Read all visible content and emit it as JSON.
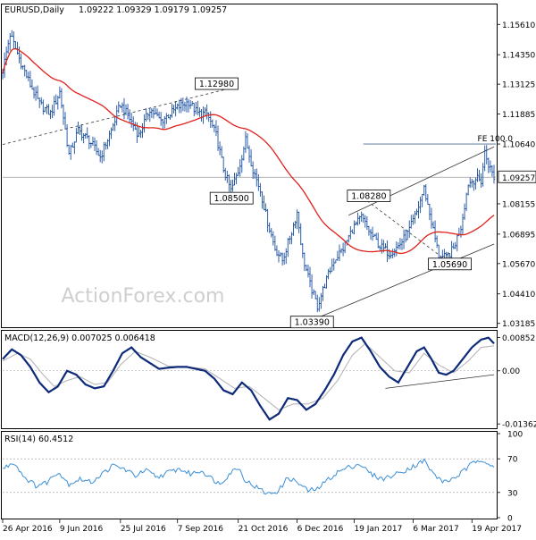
{
  "header": {
    "symbol": "EURUSD,Daily",
    "ohlc": "1.09222 1.09329 1.09179 1.09257"
  },
  "watermark": "ActionForex.com",
  "colors": {
    "bars": "#1b4fa0",
    "ma": "#e0201b",
    "macd": "#0d2a7a",
    "signal": "#b7b7b7",
    "rsi": "#3a8fd6",
    "price_tag_bg": "#ffffff"
  },
  "chart_data": [
    {
      "type": "line",
      "panel": "price",
      "title": "EURUSD,Daily",
      "ylim": [
        1.031,
        1.164
      ],
      "y_ticks": [
        "1.15610",
        "1.14350",
        "1.13125",
        "1.11885",
        "1.10640",
        "1.09257",
        "1.08155",
        "1.06895",
        "1.05670",
        "1.04410",
        "1.03185"
      ],
      "y_tick_values": [
        1.1561,
        1.1435,
        1.13125,
        1.11885,
        1.1064,
        1.09257,
        1.08155,
        1.06895,
        1.0567,
        1.0441,
        1.03185
      ],
      "last_price_label": "1.09257",
      "last_price": 1.09257,
      "x_ticks": [
        "26 Apr 2016",
        "9 Jun 2016",
        "25 Jul 2016",
        "7 Sep 2016",
        "21 Oct 2016",
        "6 Dec 2016",
        "19 Jan 2017",
        "6 Mar 2017",
        "19 Apr 2017"
      ],
      "x_tick_index": [
        0,
        31,
        64,
        95,
        128,
        160,
        191,
        223,
        255
      ],
      "n_bars": 268,
      "price_path": [
        [
          0,
          1.137
        ],
        [
          4,
          1.152
        ],
        [
          9,
          1.142
        ],
        [
          15,
          1.131
        ],
        [
          20,
          1.123
        ],
        [
          26,
          1.119
        ],
        [
          31,
          1.128
        ],
        [
          36,
          1.102
        ],
        [
          41,
          1.112
        ],
        [
          47,
          1.108
        ],
        [
          53,
          1.101
        ],
        [
          59,
          1.112
        ],
        [
          64,
          1.123
        ],
        [
          69,
          1.117
        ],
        [
          74,
          1.11
        ],
        [
          80,
          1.121
        ],
        [
          86,
          1.116
        ],
        [
          91,
          1.119
        ],
        [
          96,
          1.122
        ],
        [
          101,
          1.124
        ],
        [
          106,
          1.119
        ],
        [
          111,
          1.119
        ],
        [
          116,
          1.11
        ],
        [
          120,
          1.096
        ],
        [
          124,
          1.087
        ],
        [
          128,
          1.095
        ],
        [
          132,
          1.108
        ],
        [
          136,
          1.096
        ],
        [
          140,
          1.087
        ],
        [
          144,
          1.074
        ],
        [
          148,
          1.063
        ],
        [
          152,
          1.058
        ],
        [
          157,
          1.07
        ],
        [
          160,
          1.078
        ],
        [
          163,
          1.06
        ],
        [
          167,
          1.048
        ],
        [
          171,
          1.039
        ],
        [
          175,
          1.048
        ],
        [
          180,
          1.058
        ],
        [
          185,
          1.063
        ],
        [
          190,
          1.071
        ],
        [
          195,
          1.076
        ],
        [
          200,
          1.069
        ],
        [
          205,
          1.064
        ],
        [
          210,
          1.061
        ],
        [
          215,
          1.064
        ],
        [
          220,
          1.069
        ],
        [
          225,
          1.078
        ],
        [
          229,
          1.088
        ],
        [
          233,
          1.074
        ],
        [
          237,
          1.06
        ],
        [
          241,
          1.059
        ],
        [
          245,
          1.063
        ],
        [
          249,
          1.072
        ],
        [
          253,
          1.09
        ],
        [
          257,
          1.092
        ],
        [
          260,
          1.091
        ],
        [
          262,
          1.103
        ],
        [
          264,
          1.098
        ],
        [
          267,
          1.0926
        ]
      ],
      "labels": [
        {
          "text": "1.12980",
          "bar": 125,
          "price": 1.1298
        },
        {
          "text": "1.08500",
          "bar": 137,
          "price": 1.085
        },
        {
          "text": "1.03390",
          "bar": 171,
          "price": 1.0339
        },
        {
          "text": "1.08280",
          "bar": 198,
          "price": 1.0828
        },
        {
          "text": "1.05690",
          "bar": 243,
          "price": 1.0569
        },
        {
          "text": "FE 100.0",
          "bar": 259,
          "price": 1.1064
        }
      ],
      "fe_level": 1.1064
    },
    {
      "type": "line",
      "panel": "macd",
      "title": "MACD(12,26,9) 0.007025 0.006418",
      "ylim": [
        -0.0145,
        0.0098
      ],
      "y_ticks": [
        "0.008521",
        "0.00",
        "-0.013624"
      ],
      "y_tick_values": [
        0.008521,
        0.0,
        -0.013624
      ],
      "macd_path": [
        [
          0,
          0.003
        ],
        [
          5,
          0.0055
        ],
        [
          10,
          0.004
        ],
        [
          15,
          0.001
        ],
        [
          20,
          -0.003
        ],
        [
          25,
          -0.0055
        ],
        [
          30,
          -0.004
        ],
        [
          35,
          0.0
        ],
        [
          40,
          -0.001
        ],
        [
          45,
          -0.0035
        ],
        [
          50,
          -0.0045
        ],
        [
          55,
          -0.004
        ],
        [
          60,
          0.0
        ],
        [
          65,
          0.0045
        ],
        [
          70,
          0.006
        ],
        [
          75,
          0.0035
        ],
        [
          80,
          0.002
        ],
        [
          85,
          0.0005
        ],
        [
          90,
          0.0008
        ],
        [
          95,
          0.001
        ],
        [
          100,
          0.001
        ],
        [
          105,
          0.0005
        ],
        [
          110,
          0.0
        ],
        [
          115,
          -0.002
        ],
        [
          120,
          -0.005
        ],
        [
          125,
          -0.006
        ],
        [
          130,
          -0.003
        ],
        [
          135,
          -0.005
        ],
        [
          140,
          -0.009
        ],
        [
          145,
          -0.0125
        ],
        [
          150,
          -0.011
        ],
        [
          155,
          -0.007
        ],
        [
          160,
          -0.0075
        ],
        [
          165,
          -0.01
        ],
        [
          170,
          -0.0085
        ],
        [
          175,
          -0.005
        ],
        [
          180,
          -0.001
        ],
        [
          185,
          0.004
        ],
        [
          190,
          0.0075
        ],
        [
          195,
          0.0085
        ],
        [
          200,
          0.005
        ],
        [
          205,
          0.001
        ],
        [
          210,
          -0.0015
        ],
        [
          215,
          -0.003
        ],
        [
          220,
          0.001
        ],
        [
          225,
          0.005
        ],
        [
          229,
          0.006
        ],
        [
          233,
          0.003
        ],
        [
          237,
          -0.0005
        ],
        [
          241,
          -0.001
        ],
        [
          245,
          0.0
        ],
        [
          250,
          0.003
        ],
        [
          255,
          0.006
        ],
        [
          260,
          0.008
        ],
        [
          264,
          0.0085
        ],
        [
          267,
          0.007
        ]
      ],
      "signal_path": [
        [
          0,
          0.0025
        ],
        [
          8,
          0.0045
        ],
        [
          15,
          0.003
        ],
        [
          22,
          -0.001
        ],
        [
          28,
          -0.004
        ],
        [
          35,
          -0.0025
        ],
        [
          42,
          -0.0015
        ],
        [
          50,
          -0.0035
        ],
        [
          57,
          -0.003
        ],
        [
          64,
          0.0015
        ],
        [
          72,
          0.005
        ],
        [
          80,
          0.0035
        ],
        [
          90,
          0.0012
        ],
        [
          100,
          0.001
        ],
        [
          110,
          0.0005
        ],
        [
          118,
          -0.002
        ],
        [
          126,
          -0.0045
        ],
        [
          134,
          -0.004
        ],
        [
          142,
          -0.007
        ],
        [
          150,
          -0.01
        ],
        [
          158,
          -0.0085
        ],
        [
          166,
          -0.0085
        ],
        [
          174,
          -0.007
        ],
        [
          182,
          -0.0025
        ],
        [
          190,
          0.004
        ],
        [
          197,
          0.007
        ],
        [
          205,
          0.0035
        ],
        [
          213,
          0.0
        ],
        [
          221,
          -0.0005
        ],
        [
          229,
          0.0045
        ],
        [
          237,
          0.0015
        ],
        [
          245,
          -0.0005
        ],
        [
          253,
          0.0025
        ],
        [
          260,
          0.006
        ],
        [
          267,
          0.0064
        ]
      ],
      "trendline": [
        [
          208,
          -0.0045
        ],
        [
          267,
          -0.001
        ]
      ]
    },
    {
      "type": "line",
      "panel": "rsi",
      "title": "RSI(14) 60.4512",
      "ylim": [
        0,
        100
      ],
      "y_ticks": [
        "100",
        "70",
        "30",
        "0"
      ],
      "y_tick_values": [
        100,
        70,
        30,
        0
      ],
      "rsi_path": [
        [
          0,
          58
        ],
        [
          6,
          66
        ],
        [
          12,
          48
        ],
        [
          18,
          38
        ],
        [
          24,
          42
        ],
        [
          30,
          55
        ],
        [
          36,
          40
        ],
        [
          42,
          46
        ],
        [
          48,
          42
        ],
        [
          54,
          52
        ],
        [
          60,
          62
        ],
        [
          66,
          58
        ],
        [
          72,
          50
        ],
        [
          78,
          56
        ],
        [
          84,
          48
        ],
        [
          90,
          54
        ],
        [
          96,
          58
        ],
        [
          102,
          52
        ],
        [
          108,
          56
        ],
        [
          114,
          46
        ],
        [
          118,
          40
        ],
        [
          124,
          54
        ],
        [
          128,
          60
        ],
        [
          132,
          44
        ],
        [
          138,
          36
        ],
        [
          144,
          28
        ],
        [
          150,
          32
        ],
        [
          155,
          48
        ],
        [
          160,
          42
        ],
        [
          166,
          32
        ],
        [
          171,
          34
        ],
        [
          176,
          44
        ],
        [
          182,
          54
        ],
        [
          188,
          60
        ],
        [
          194,
          64
        ],
        [
          200,
          52
        ],
        [
          206,
          46
        ],
        [
          212,
          50
        ],
        [
          218,
          56
        ],
        [
          224,
          62
        ],
        [
          229,
          68
        ],
        [
          234,
          52
        ],
        [
          240,
          42
        ],
        [
          246,
          48
        ],
        [
          252,
          58
        ],
        [
          256,
          66
        ],
        [
          260,
          70
        ],
        [
          263,
          66
        ],
        [
          267,
          60
        ]
      ]
    }
  ]
}
